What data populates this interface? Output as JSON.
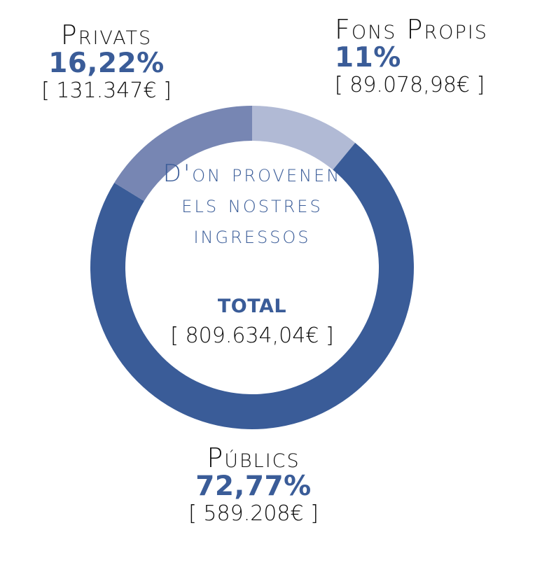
{
  "chart_data": {
    "type": "pie",
    "title": "D'on provenen els nostres ingressos",
    "categories": [
      "Fons Propis",
      "Públics",
      "Privats"
    ],
    "values": [
      11.0,
      72.77,
      16.22
    ],
    "percent_labels": [
      "11%",
      "72,77%",
      "16,22%"
    ],
    "amount_labels": [
      "[ 89.078,98€ ]",
      "[ 589.208€ ]",
      "[ 131.347€ ]"
    ],
    "colors": [
      "#b1bad5",
      "#3a5c98",
      "#7786b3"
    ],
    "total_label": "TOTAL",
    "total_amount": "[ 809.634,04€ ]"
  }
}
